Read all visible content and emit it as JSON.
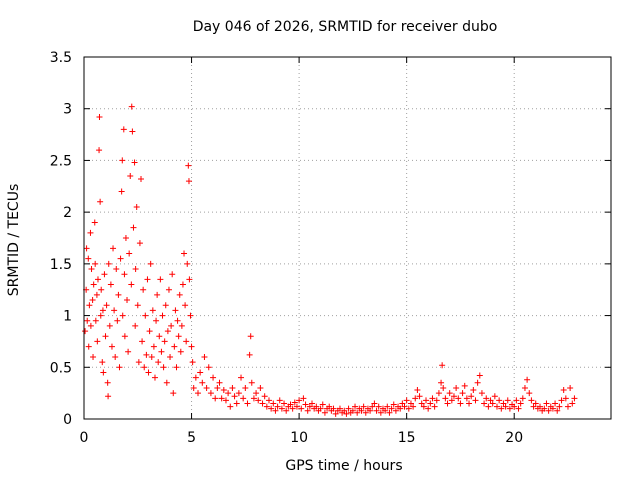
{
  "chart_data": {
    "type": "scatter",
    "title": "Day 046 of 2026, SRMTID for receiver dubo",
    "xlabel": "GPS time / hours",
    "ylabel": "SRMTID / TECUs",
    "xlim": [
      0,
      24.5
    ],
    "ylim": [
      0,
      3.5
    ],
    "xticks": [
      0,
      5,
      10,
      15,
      20
    ],
    "xtick_labels": [
      "0",
      "5",
      "10",
      "15",
      "20"
    ],
    "yticks": [
      0,
      0.5,
      1,
      1.5,
      2,
      2.5,
      3,
      3.5
    ],
    "ytick_labels": [
      "0",
      "0.5",
      "1",
      "1.5",
      "2",
      "2.5",
      "3",
      "3.5"
    ],
    "grid": true,
    "marker": "+",
    "marker_color": "#ff0000",
    "series": [
      {
        "name": "SRMTID",
        "points": [
          [
            0.05,
            0.85
          ],
          [
            0.1,
            1.25
          ],
          [
            0.12,
            1.65
          ],
          [
            0.15,
            0.95
          ],
          [
            0.2,
            1.55
          ],
          [
            0.22,
            0.7
          ],
          [
            0.25,
            1.1
          ],
          [
            0.3,
            1.8
          ],
          [
            0.32,
            0.9
          ],
          [
            0.35,
            1.45
          ],
          [
            0.4,
            1.15
          ],
          [
            0.42,
            0.6
          ],
          [
            0.45,
            1.3
          ],
          [
            0.5,
            1.9
          ],
          [
            0.52,
            1.5
          ],
          [
            0.55,
            0.95
          ],
          [
            0.6,
            1.2
          ],
          [
            0.62,
            0.75
          ],
          [
            0.65,
            1.35
          ],
          [
            0.7,
            2.6
          ],
          [
            0.72,
            2.92
          ],
          [
            0.75,
            2.1
          ],
          [
            0.78,
            1.0
          ],
          [
            0.8,
            1.25
          ],
          [
            0.85,
            0.55
          ],
          [
            0.88,
            1.05
          ],
          [
            0.9,
            0.45
          ],
          [
            0.95,
            1.4
          ],
          [
            1.0,
            0.8
          ],
          [
            1.05,
            1.1
          ],
          [
            1.1,
            0.35
          ],
          [
            1.12,
            0.22
          ],
          [
            1.15,
            1.5
          ],
          [
            1.2,
            0.9
          ],
          [
            1.25,
            1.3
          ],
          [
            1.3,
            0.7
          ],
          [
            1.35,
            1.65
          ],
          [
            1.4,
            1.05
          ],
          [
            1.45,
            0.6
          ],
          [
            1.5,
            1.45
          ],
          [
            1.55,
            0.95
          ],
          [
            1.6,
            1.2
          ],
          [
            1.65,
            0.5
          ],
          [
            1.7,
            1.55
          ],
          [
            1.75,
            2.2
          ],
          [
            1.78,
            2.5
          ],
          [
            1.8,
            1.0
          ],
          [
            1.85,
            2.8
          ],
          [
            1.88,
            1.4
          ],
          [
            1.9,
            0.8
          ],
          [
            1.95,
            1.75
          ],
          [
            2.0,
            1.15
          ],
          [
            2.05,
            0.65
          ],
          [
            2.1,
            1.6
          ],
          [
            2.15,
            2.35
          ],
          [
            2.2,
            1.3
          ],
          [
            2.22,
            3.02
          ],
          [
            2.25,
            2.78
          ],
          [
            2.3,
            1.85
          ],
          [
            2.35,
            2.48
          ],
          [
            2.38,
            0.9
          ],
          [
            2.4,
            1.45
          ],
          [
            2.45,
            2.05
          ],
          [
            2.5,
            1.1
          ],
          [
            2.55,
            0.55
          ],
          [
            2.6,
            1.7
          ],
          [
            2.65,
            2.32
          ],
          [
            2.7,
            0.75
          ],
          [
            2.75,
            1.25
          ],
          [
            2.8,
            0.5
          ],
          [
            2.85,
            1.0
          ],
          [
            2.9,
            0.62
          ],
          [
            2.95,
            1.35
          ],
          [
            3.0,
            0.45
          ],
          [
            3.05,
            0.85
          ],
          [
            3.1,
            1.5
          ],
          [
            3.15,
            0.6
          ],
          [
            3.2,
            1.05
          ],
          [
            3.25,
            0.7
          ],
          [
            3.3,
            0.4
          ],
          [
            3.35,
            0.95
          ],
          [
            3.4,
            1.2
          ],
          [
            3.45,
            0.55
          ],
          [
            3.5,
            0.8
          ],
          [
            3.55,
            1.35
          ],
          [
            3.6,
            0.65
          ],
          [
            3.65,
            1.0
          ],
          [
            3.7,
            0.5
          ],
          [
            3.75,
            0.75
          ],
          [
            3.8,
            1.1
          ],
          [
            3.85,
            0.35
          ],
          [
            3.9,
            0.85
          ],
          [
            3.95,
            1.25
          ],
          [
            4.0,
            0.6
          ],
          [
            4.05,
            0.9
          ],
          [
            4.1,
            1.4
          ],
          [
            4.15,
            0.25
          ],
          [
            4.2,
            0.7
          ],
          [
            4.25,
            1.05
          ],
          [
            4.3,
            0.5
          ],
          [
            4.35,
            0.95
          ],
          [
            4.4,
            0.8
          ],
          [
            4.45,
            1.2
          ],
          [
            4.5,
            0.65
          ],
          [
            4.55,
            0.9
          ],
          [
            4.6,
            1.3
          ],
          [
            4.65,
            1.6
          ],
          [
            4.7,
            1.1
          ],
          [
            4.75,
            0.75
          ],
          [
            4.8,
            1.5
          ],
          [
            4.85,
            2.45
          ],
          [
            4.88,
            2.3
          ],
          [
            4.9,
            1.35
          ],
          [
            4.95,
            1.0
          ],
          [
            5.0,
            0.7
          ],
          [
            5.05,
            0.55
          ],
          [
            5.1,
            0.3
          ],
          [
            5.2,
            0.4
          ],
          [
            5.3,
            0.25
          ],
          [
            5.4,
            0.45
          ],
          [
            5.5,
            0.35
          ],
          [
            5.6,
            0.6
          ],
          [
            5.7,
            0.3
          ],
          [
            5.8,
            0.5
          ],
          [
            5.9,
            0.25
          ],
          [
            6.0,
            0.4
          ],
          [
            6.1,
            0.2
          ],
          [
            6.2,
            0.3
          ],
          [
            6.3,
            0.35
          ],
          [
            6.4,
            0.2
          ],
          [
            6.5,
            0.28
          ],
          [
            6.6,
            0.18
          ],
          [
            6.7,
            0.25
          ],
          [
            6.8,
            0.12
          ],
          [
            6.9,
            0.3
          ],
          [
            7.0,
            0.22
          ],
          [
            7.1,
            0.15
          ],
          [
            7.2,
            0.25
          ],
          [
            7.3,
            0.4
          ],
          [
            7.4,
            0.2
          ],
          [
            7.5,
            0.3
          ],
          [
            7.6,
            0.15
          ],
          [
            7.7,
            0.62
          ],
          [
            7.75,
            0.8
          ],
          [
            7.8,
            0.35
          ],
          [
            7.9,
            0.2
          ],
          [
            8.0,
            0.25
          ],
          [
            8.1,
            0.18
          ],
          [
            8.2,
            0.3
          ],
          [
            8.3,
            0.15
          ],
          [
            8.4,
            0.22
          ],
          [
            8.5,
            0.12
          ],
          [
            8.6,
            0.18
          ],
          [
            8.7,
            0.1
          ],
          [
            8.8,
            0.15
          ],
          [
            8.9,
            0.08
          ],
          [
            9.0,
            0.12
          ],
          [
            9.1,
            0.18
          ],
          [
            9.2,
            0.1
          ],
          [
            9.3,
            0.15
          ],
          [
            9.4,
            0.08
          ],
          [
            9.5,
            0.12
          ],
          [
            9.6,
            0.14
          ],
          [
            9.7,
            0.1
          ],
          [
            9.8,
            0.16
          ],
          [
            9.9,
            0.12
          ],
          [
            10.0,
            0.18
          ],
          [
            10.1,
            0.1
          ],
          [
            10.2,
            0.2
          ],
          [
            10.3,
            0.14
          ],
          [
            10.4,
            0.08
          ],
          [
            10.5,
            0.12
          ],
          [
            10.6,
            0.15
          ],
          [
            10.7,
            0.1
          ],
          [
            10.8,
            0.12
          ],
          [
            10.9,
            0.08
          ],
          [
            11.0,
            0.1
          ],
          [
            11.1,
            0.14
          ],
          [
            11.2,
            0.06
          ],
          [
            11.3,
            0.1
          ],
          [
            11.4,
            0.12
          ],
          [
            11.5,
            0.08
          ],
          [
            11.6,
            0.1
          ],
          [
            11.7,
            0.05
          ],
          [
            11.8,
            0.08
          ],
          [
            11.9,
            0.1
          ],
          [
            12.0,
            0.06
          ],
          [
            12.1,
            0.08
          ],
          [
            12.2,
            0.05
          ],
          [
            12.3,
            0.1
          ],
          [
            12.4,
            0.06
          ],
          [
            12.5,
            0.08
          ],
          [
            12.6,
            0.12
          ],
          [
            12.7,
            0.06
          ],
          [
            12.8,
            0.1
          ],
          [
            12.9,
            0.08
          ],
          [
            13.0,
            0.12
          ],
          [
            13.1,
            0.06
          ],
          [
            13.2,
            0.1
          ],
          [
            13.3,
            0.08
          ],
          [
            13.4,
            0.12
          ],
          [
            13.5,
            0.15
          ],
          [
            13.6,
            0.08
          ],
          [
            13.7,
            0.12
          ],
          [
            13.8,
            0.06
          ],
          [
            13.9,
            0.1
          ],
          [
            14.0,
            0.08
          ],
          [
            14.1,
            0.12
          ],
          [
            14.2,
            0.06
          ],
          [
            14.3,
            0.1
          ],
          [
            14.4,
            0.14
          ],
          [
            14.5,
            0.08
          ],
          [
            14.6,
            0.12
          ],
          [
            14.7,
            0.1
          ],
          [
            14.8,
            0.15
          ],
          [
            14.9,
            0.12
          ],
          [
            15.0,
            0.18
          ],
          [
            15.1,
            0.1
          ],
          [
            15.2,
            0.15
          ],
          [
            15.3,
            0.12
          ],
          [
            15.4,
            0.2
          ],
          [
            15.5,
            0.28
          ],
          [
            15.6,
            0.22
          ],
          [
            15.7,
            0.15
          ],
          [
            15.8,
            0.12
          ],
          [
            15.9,
            0.18
          ],
          [
            16.0,
            0.1
          ],
          [
            16.1,
            0.15
          ],
          [
            16.2,
            0.2
          ],
          [
            16.3,
            0.12
          ],
          [
            16.4,
            0.18
          ],
          [
            16.5,
            0.25
          ],
          [
            16.6,
            0.35
          ],
          [
            16.65,
            0.52
          ],
          [
            16.7,
            0.3
          ],
          [
            16.8,
            0.2
          ],
          [
            16.9,
            0.15
          ],
          [
            17.0,
            0.25
          ],
          [
            17.1,
            0.18
          ],
          [
            17.2,
            0.22
          ],
          [
            17.3,
            0.3
          ],
          [
            17.4,
            0.2
          ],
          [
            17.5,
            0.15
          ],
          [
            17.6,
            0.25
          ],
          [
            17.7,
            0.32
          ],
          [
            17.8,
            0.2
          ],
          [
            17.9,
            0.15
          ],
          [
            18.0,
            0.22
          ],
          [
            18.1,
            0.28
          ],
          [
            18.2,
            0.18
          ],
          [
            18.3,
            0.35
          ],
          [
            18.4,
            0.42
          ],
          [
            18.5,
            0.25
          ],
          [
            18.6,
            0.15
          ],
          [
            18.7,
            0.2
          ],
          [
            18.8,
            0.12
          ],
          [
            18.9,
            0.18
          ],
          [
            19.0,
            0.15
          ],
          [
            19.1,
            0.22
          ],
          [
            19.2,
            0.12
          ],
          [
            19.3,
            0.18
          ],
          [
            19.4,
            0.1
          ],
          [
            19.5,
            0.15
          ],
          [
            19.6,
            0.12
          ],
          [
            19.7,
            0.18
          ],
          [
            19.8,
            0.1
          ],
          [
            19.9,
            0.14
          ],
          [
            20.0,
            0.12
          ],
          [
            20.1,
            0.18
          ],
          [
            20.2,
            0.1
          ],
          [
            20.3,
            0.15
          ],
          [
            20.4,
            0.2
          ],
          [
            20.5,
            0.3
          ],
          [
            20.6,
            0.38
          ],
          [
            20.7,
            0.25
          ],
          [
            20.8,
            0.18
          ],
          [
            20.9,
            0.12
          ],
          [
            21.0,
            0.15
          ],
          [
            21.1,
            0.1
          ],
          [
            21.2,
            0.12
          ],
          [
            21.3,
            0.08
          ],
          [
            21.4,
            0.1
          ],
          [
            21.5,
            0.15
          ],
          [
            21.6,
            0.08
          ],
          [
            21.7,
            0.12
          ],
          [
            21.8,
            0.1
          ],
          [
            21.9,
            0.15
          ],
          [
            22.0,
            0.08
          ],
          [
            22.1,
            0.12
          ],
          [
            22.2,
            0.18
          ],
          [
            22.3,
            0.28
          ],
          [
            22.4,
            0.2
          ],
          [
            22.5,
            0.12
          ],
          [
            22.6,
            0.3
          ],
          [
            22.7,
            0.15
          ],
          [
            22.8,
            0.2
          ]
        ]
      }
    ]
  }
}
